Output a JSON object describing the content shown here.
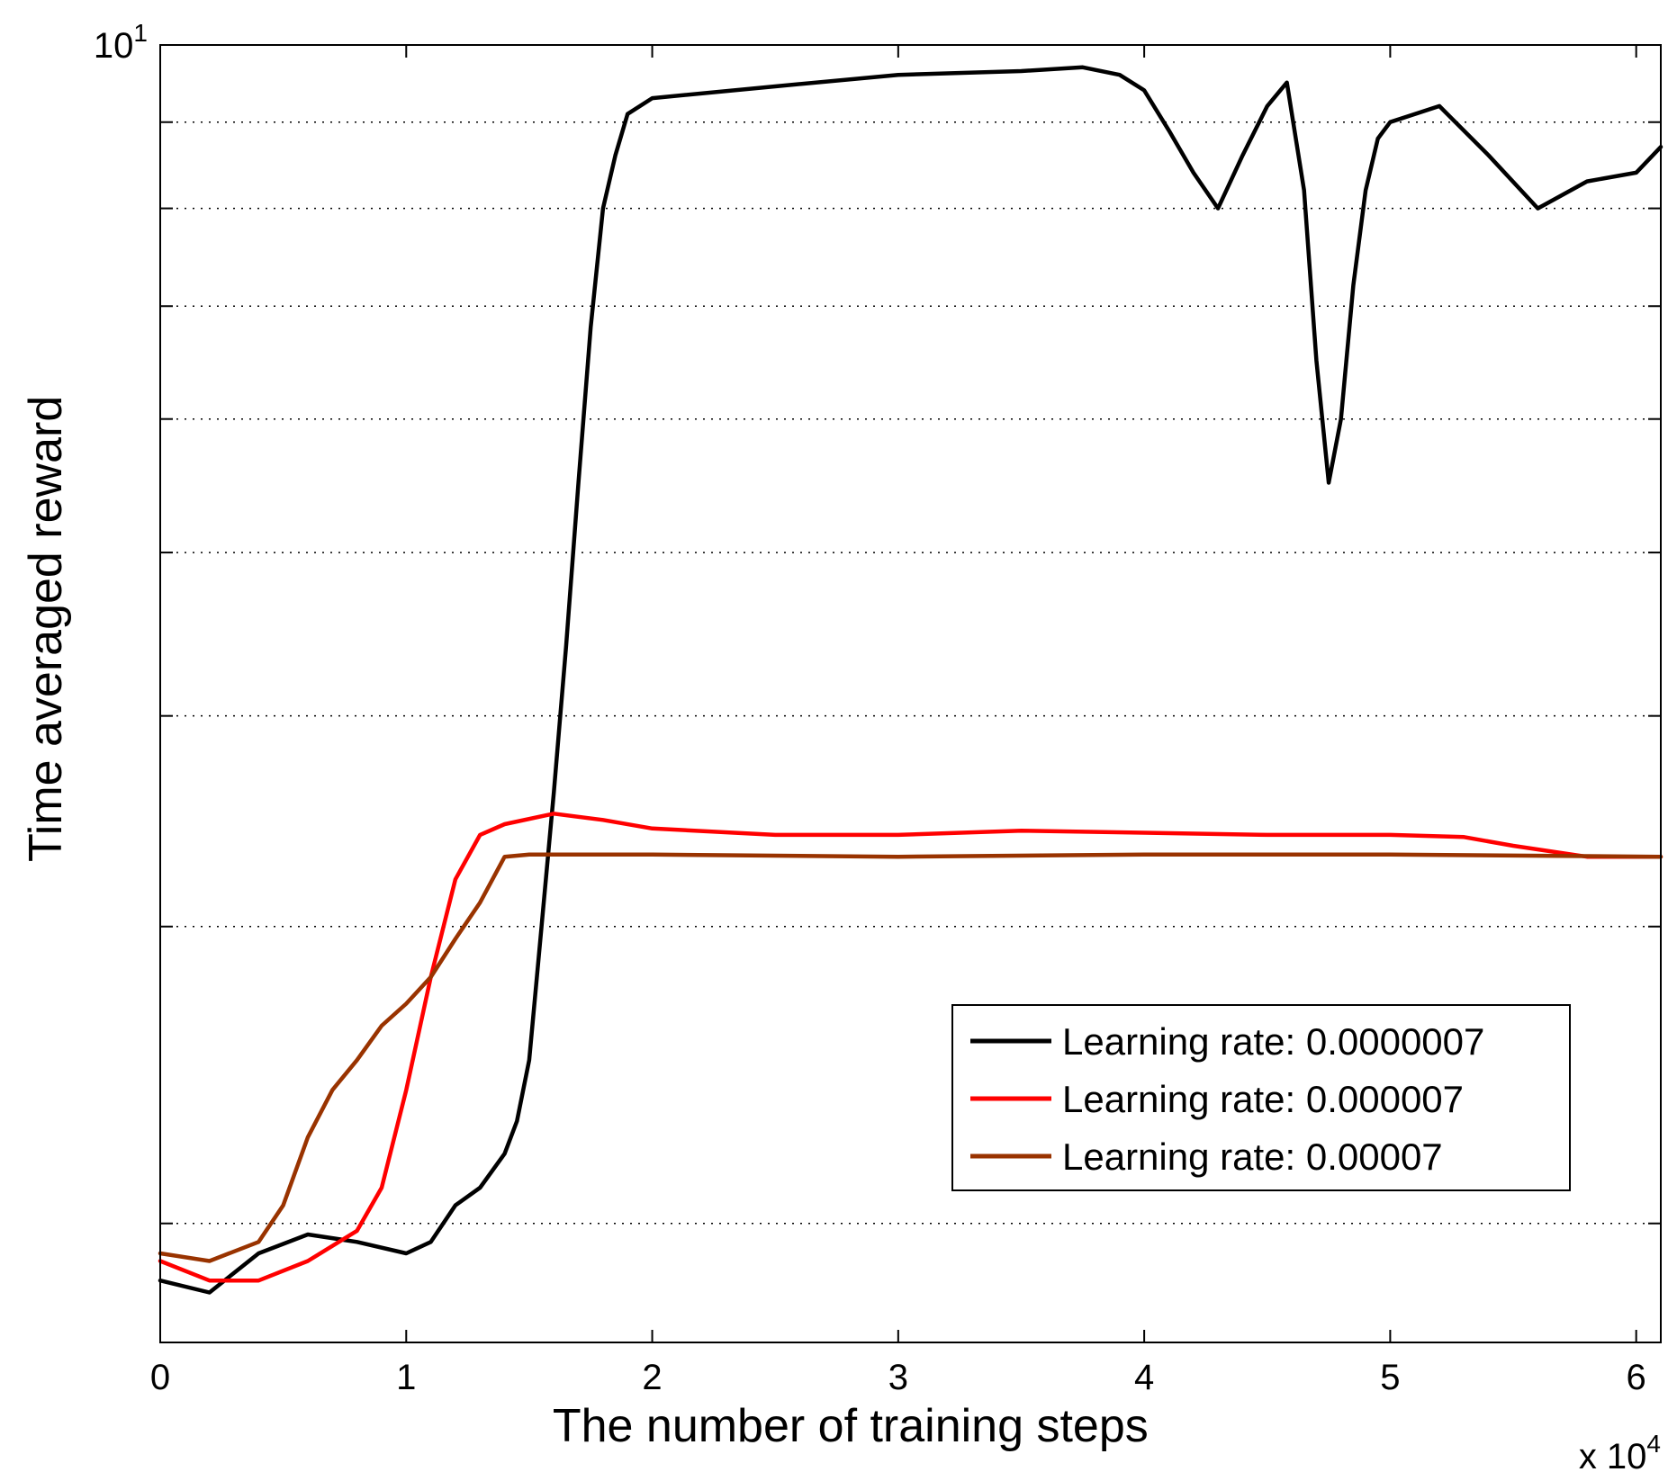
{
  "chart_data": {
    "type": "line",
    "title": "",
    "xlabel": "The number of training steps",
    "ylabel": "Time averaged reward",
    "x_multiplier_label": "x 10",
    "x_multiplier_exp": "4",
    "y_top_label": "10",
    "y_top_exp": "1",
    "x_scale": "linear",
    "y_scale": "log",
    "xlim": [
      0,
      6.1
    ],
    "ylim": [
      1.7,
      10
    ],
    "x_ticks": [
      0,
      1,
      2,
      3,
      4,
      5,
      6
    ],
    "x_tick_labels": [
      "0",
      "1",
      "2",
      "3",
      "4",
      "5",
      "6"
    ],
    "y_grid_values": [
      2,
      3,
      4,
      5,
      6,
      7,
      8,
      9
    ],
    "grid": "horizontal dotted",
    "legend_position": "lower-right",
    "series": [
      {
        "name": "Learning rate: 0.0000007",
        "color": "#000000",
        "x": [
          0,
          0.2,
          0.4,
          0.6,
          0.8,
          1.0,
          1.1,
          1.2,
          1.3,
          1.4,
          1.45,
          1.5,
          1.55,
          1.6,
          1.65,
          1.7,
          1.75,
          1.8,
          1.85,
          1.9,
          2.0,
          2.5,
          3.0,
          3.5,
          3.75,
          3.9,
          4.0,
          4.1,
          4.2,
          4.3,
          4.4,
          4.5,
          4.58,
          4.65,
          4.7,
          4.75,
          4.8,
          4.85,
          4.9,
          4.95,
          5.0,
          5.2,
          5.4,
          5.6,
          5.8,
          6.0,
          6.1
        ],
        "y": [
          1.85,
          1.82,
          1.92,
          1.97,
          1.95,
          1.92,
          1.95,
          2.05,
          2.1,
          2.2,
          2.3,
          2.5,
          3.0,
          3.6,
          4.4,
          5.5,
          6.8,
          8.0,
          8.6,
          9.1,
          9.3,
          9.45,
          9.6,
          9.65,
          9.7,
          9.6,
          9.4,
          8.9,
          8.4,
          8.0,
          8.6,
          9.2,
          9.5,
          8.2,
          6.5,
          5.5,
          6.0,
          7.2,
          8.2,
          8.8,
          9.0,
          9.2,
          8.6,
          8.0,
          8.3,
          8.4,
          8.7
        ]
      },
      {
        "name": "Learning rate: 0.000007",
        "color": "#ff0000",
        "x": [
          0,
          0.2,
          0.4,
          0.6,
          0.8,
          0.9,
          1.0,
          1.1,
          1.2,
          1.3,
          1.4,
          1.6,
          1.8,
          2.0,
          2.5,
          3.0,
          3.5,
          4.0,
          4.5,
          5.0,
          5.3,
          5.5,
          5.8,
          6.1
        ],
        "y": [
          1.9,
          1.85,
          1.85,
          1.9,
          1.98,
          2.1,
          2.4,
          2.8,
          3.2,
          3.4,
          3.45,
          3.5,
          3.47,
          3.43,
          3.4,
          3.4,
          3.42,
          3.41,
          3.4,
          3.4,
          3.39,
          3.35,
          3.3,
          3.3
        ]
      },
      {
        "name": "Learning rate: 0.00007",
        "color": "#993300",
        "x": [
          0,
          0.2,
          0.4,
          0.5,
          0.6,
          0.7,
          0.8,
          0.9,
          1.0,
          1.1,
          1.2,
          1.3,
          1.4,
          1.5,
          2.0,
          3.0,
          4.0,
          5.0,
          6.1
        ],
        "y": [
          1.92,
          1.9,
          1.95,
          2.05,
          2.25,
          2.4,
          2.5,
          2.62,
          2.7,
          2.8,
          2.95,
          3.1,
          3.3,
          3.31,
          3.31,
          3.3,
          3.31,
          3.31,
          3.3
        ]
      }
    ]
  }
}
